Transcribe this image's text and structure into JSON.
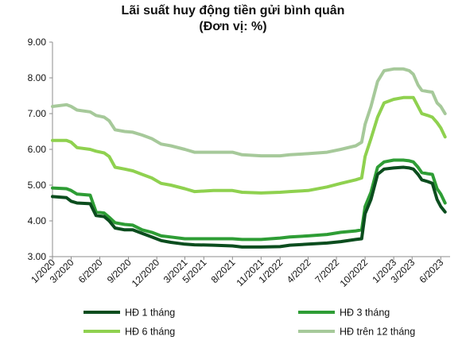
{
  "chart_data": {
    "type": "line",
    "title": "Lãi suất huy động tiền gửi bình quân",
    "subtitle": "(Đơn vị: %)",
    "xlabel": "",
    "ylabel": "",
    "ylim": [
      3.0,
      9.0
    ],
    "y_ticks": [
      "3.00",
      "4.00",
      "5.00",
      "6.00",
      "7.00",
      "8.00",
      "9.00"
    ],
    "x_ticks": [
      "1/2020",
      "3/2020",
      "6/2020",
      "9/2020",
      "12/2020",
      "3/2021",
      "5/2021",
      "8/2021",
      "11/2021",
      "1/2022",
      "4/2022",
      "7/2022",
      "10/2022",
      "1/2023",
      "3/2023",
      "6/2023"
    ],
    "x_range": [
      "1/2020",
      "6/2023"
    ],
    "grid": false,
    "legend_position": "bottom",
    "series": [
      {
        "name": "HĐ 1 tháng",
        "color": "#0b4d1e",
        "points": [
          [
            "2020-01-01",
            4.68
          ],
          [
            "2020-02-15",
            4.65
          ],
          [
            "2020-03-01",
            4.55
          ],
          [
            "2020-03-20",
            4.5
          ],
          [
            "2020-05-01",
            4.48
          ],
          [
            "2020-05-20",
            4.15
          ],
          [
            "2020-06-15",
            4.12
          ],
          [
            "2020-07-01",
            4.0
          ],
          [
            "2020-07-20",
            3.8
          ],
          [
            "2020-08-20",
            3.75
          ],
          [
            "2020-09-15",
            3.75
          ],
          [
            "2020-10-15",
            3.65
          ],
          [
            "2020-11-15",
            3.55
          ],
          [
            "2020-12-15",
            3.45
          ],
          [
            "2021-01-15",
            3.4
          ],
          [
            "2021-03-01",
            3.35
          ],
          [
            "2021-04-01",
            3.33
          ],
          [
            "2021-06-01",
            3.32
          ],
          [
            "2021-08-01",
            3.3
          ],
          [
            "2021-09-01",
            3.27
          ],
          [
            "2021-11-01",
            3.27
          ],
          [
            "2022-01-01",
            3.28
          ],
          [
            "2022-02-01",
            3.32
          ],
          [
            "2022-04-01",
            3.35
          ],
          [
            "2022-06-01",
            3.38
          ],
          [
            "2022-07-15",
            3.42
          ],
          [
            "2022-09-01",
            3.48
          ],
          [
            "2022-09-20",
            3.5
          ],
          [
            "2022-10-01",
            4.2
          ],
          [
            "2022-10-20",
            4.6
          ],
          [
            "2022-11-10",
            5.3
          ],
          [
            "2022-12-01",
            5.45
          ],
          [
            "2023-01-01",
            5.48
          ],
          [
            "2023-02-01",
            5.5
          ],
          [
            "2023-02-20",
            5.48
          ],
          [
            "2023-03-05",
            5.45
          ],
          [
            "2023-03-20",
            5.3
          ],
          [
            "2023-04-01",
            5.15
          ],
          [
            "2023-04-20",
            5.1
          ],
          [
            "2023-05-05",
            5.05
          ],
          [
            "2023-05-20",
            4.6
          ],
          [
            "2023-06-01",
            4.4
          ],
          [
            "2023-06-15",
            4.25
          ]
        ]
      },
      {
        "name": "HĐ 3 tháng",
        "color": "#2e9d35",
        "points": [
          [
            "2020-01-01",
            4.92
          ],
          [
            "2020-02-15",
            4.9
          ],
          [
            "2020-03-01",
            4.85
          ],
          [
            "2020-03-20",
            4.75
          ],
          [
            "2020-05-01",
            4.72
          ],
          [
            "2020-05-20",
            4.25
          ],
          [
            "2020-06-15",
            4.22
          ],
          [
            "2020-07-01",
            4.1
          ],
          [
            "2020-07-20",
            3.95
          ],
          [
            "2020-08-20",
            3.9
          ],
          [
            "2020-09-15",
            3.88
          ],
          [
            "2020-10-15",
            3.75
          ],
          [
            "2020-11-15",
            3.68
          ],
          [
            "2020-12-15",
            3.58
          ],
          [
            "2021-01-15",
            3.55
          ],
          [
            "2021-03-01",
            3.5
          ],
          [
            "2021-04-01",
            3.5
          ],
          [
            "2021-06-01",
            3.5
          ],
          [
            "2021-08-01",
            3.5
          ],
          [
            "2021-09-01",
            3.48
          ],
          [
            "2021-11-01",
            3.48
          ],
          [
            "2022-01-01",
            3.52
          ],
          [
            "2022-02-01",
            3.55
          ],
          [
            "2022-04-01",
            3.58
          ],
          [
            "2022-06-01",
            3.62
          ],
          [
            "2022-07-15",
            3.68
          ],
          [
            "2022-09-01",
            3.72
          ],
          [
            "2022-09-20",
            3.75
          ],
          [
            "2022-10-01",
            4.4
          ],
          [
            "2022-10-20",
            4.8
          ],
          [
            "2022-11-10",
            5.5
          ],
          [
            "2022-12-01",
            5.65
          ],
          [
            "2023-01-01",
            5.7
          ],
          [
            "2023-02-01",
            5.7
          ],
          [
            "2023-02-20",
            5.68
          ],
          [
            "2023-03-05",
            5.65
          ],
          [
            "2023-03-20",
            5.5
          ],
          [
            "2023-04-01",
            5.35
          ],
          [
            "2023-04-20",
            5.32
          ],
          [
            "2023-05-05",
            5.3
          ],
          [
            "2023-05-20",
            4.9
          ],
          [
            "2023-06-01",
            4.75
          ],
          [
            "2023-06-15",
            4.5
          ]
        ]
      },
      {
        "name": "HĐ 6 tháng",
        "color": "#8fd14f",
        "points": [
          [
            "2020-01-01",
            6.25
          ],
          [
            "2020-02-15",
            6.25
          ],
          [
            "2020-03-01",
            6.2
          ],
          [
            "2020-03-20",
            6.05
          ],
          [
            "2020-05-01",
            6.0
          ],
          [
            "2020-05-20",
            5.95
          ],
          [
            "2020-06-15",
            5.9
          ],
          [
            "2020-07-01",
            5.8
          ],
          [
            "2020-07-20",
            5.5
          ],
          [
            "2020-08-20",
            5.45
          ],
          [
            "2020-09-15",
            5.4
          ],
          [
            "2020-10-15",
            5.3
          ],
          [
            "2020-11-15",
            5.2
          ],
          [
            "2020-12-15",
            5.05
          ],
          [
            "2021-01-15",
            5.0
          ],
          [
            "2021-03-01",
            4.9
          ],
          [
            "2021-04-01",
            4.82
          ],
          [
            "2021-06-01",
            4.85
          ],
          [
            "2021-08-01",
            4.85
          ],
          [
            "2021-09-01",
            4.8
          ],
          [
            "2021-11-01",
            4.78
          ],
          [
            "2022-01-01",
            4.8
          ],
          [
            "2022-02-01",
            4.82
          ],
          [
            "2022-04-01",
            4.85
          ],
          [
            "2022-06-01",
            4.95
          ],
          [
            "2022-07-15",
            5.05
          ],
          [
            "2022-09-01",
            5.15
          ],
          [
            "2022-09-20",
            5.2
          ],
          [
            "2022-10-01",
            5.8
          ],
          [
            "2022-10-20",
            6.3
          ],
          [
            "2022-11-10",
            6.9
          ],
          [
            "2022-12-01",
            7.3
          ],
          [
            "2023-01-01",
            7.4
          ],
          [
            "2023-02-01",
            7.45
          ],
          [
            "2023-02-20",
            7.45
          ],
          [
            "2023-03-05",
            7.45
          ],
          [
            "2023-03-20",
            7.2
          ],
          [
            "2023-04-01",
            7.0
          ],
          [
            "2023-04-20",
            6.95
          ],
          [
            "2023-05-05",
            6.9
          ],
          [
            "2023-05-20",
            6.75
          ],
          [
            "2023-06-01",
            6.6
          ],
          [
            "2023-06-15",
            6.35
          ]
        ]
      },
      {
        "name": "HĐ trên 12 tháng",
        "color": "#a6c99a",
        "points": [
          [
            "2020-01-01",
            7.2
          ],
          [
            "2020-02-15",
            7.25
          ],
          [
            "2020-03-01",
            7.2
          ],
          [
            "2020-03-20",
            7.1
          ],
          [
            "2020-05-01",
            7.05
          ],
          [
            "2020-05-20",
            6.95
          ],
          [
            "2020-06-15",
            6.9
          ],
          [
            "2020-07-01",
            6.8
          ],
          [
            "2020-07-20",
            6.55
          ],
          [
            "2020-08-20",
            6.5
          ],
          [
            "2020-09-15",
            6.48
          ],
          [
            "2020-10-15",
            6.4
          ],
          [
            "2020-11-15",
            6.3
          ],
          [
            "2020-12-15",
            6.15
          ],
          [
            "2021-01-15",
            6.1
          ],
          [
            "2021-03-01",
            6.0
          ],
          [
            "2021-04-01",
            5.92
          ],
          [
            "2021-06-01",
            5.92
          ],
          [
            "2021-08-01",
            5.92
          ],
          [
            "2021-09-01",
            5.85
          ],
          [
            "2021-11-01",
            5.82
          ],
          [
            "2022-01-01",
            5.82
          ],
          [
            "2022-02-01",
            5.85
          ],
          [
            "2022-04-01",
            5.88
          ],
          [
            "2022-06-01",
            5.92
          ],
          [
            "2022-07-15",
            6.0
          ],
          [
            "2022-09-01",
            6.1
          ],
          [
            "2022-09-20",
            6.2
          ],
          [
            "2022-10-01",
            6.7
          ],
          [
            "2022-10-20",
            7.2
          ],
          [
            "2022-11-10",
            7.9
          ],
          [
            "2022-12-01",
            8.2
          ],
          [
            "2023-01-01",
            8.25
          ],
          [
            "2023-02-01",
            8.25
          ],
          [
            "2023-02-20",
            8.2
          ],
          [
            "2023-03-05",
            8.1
          ],
          [
            "2023-03-20",
            7.8
          ],
          [
            "2023-04-01",
            7.65
          ],
          [
            "2023-04-20",
            7.62
          ],
          [
            "2023-05-05",
            7.6
          ],
          [
            "2023-05-20",
            7.3
          ],
          [
            "2023-06-01",
            7.2
          ],
          [
            "2023-06-15",
            7.0
          ]
        ]
      }
    ]
  }
}
